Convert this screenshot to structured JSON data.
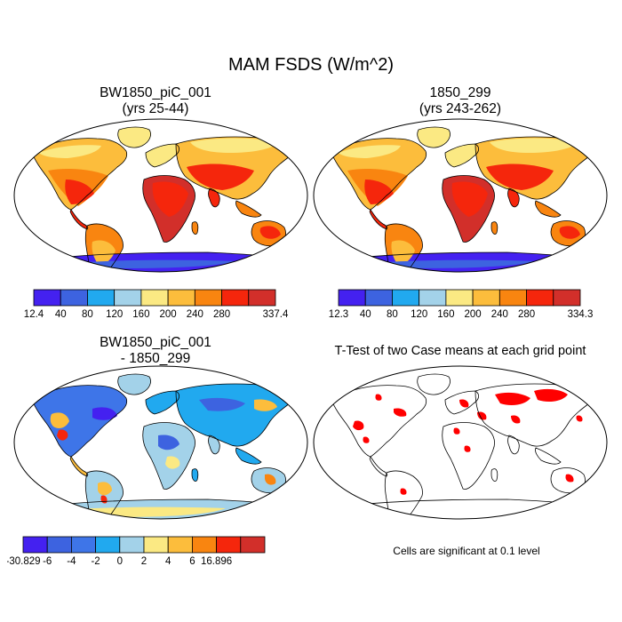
{
  "title": "MAM FSDS (W/m^2)",
  "panels": {
    "case1": {
      "title_line1": "BW1850_piC_001",
      "title_line2": "(yrs 25-44)"
    },
    "case2": {
      "title_line1": "1850_299",
      "title_line2": "(yrs 243-262)"
    },
    "diff": {
      "title_line1": "BW1850_piC_001",
      "title_line2": "- 1850_299"
    },
    "ttest": {
      "title": "T-Test of two Case means at each grid point",
      "note": "Cells are significant at 0.1 level"
    }
  },
  "colorbars": {
    "case1": {
      "colors": [
        "#4421f0",
        "#3d63e0",
        "#21a9ef",
        "#a3d2e9",
        "#fbe983",
        "#fcbd3c",
        "#f98510",
        "#f5260c",
        "#d22f2a"
      ],
      "labels": [
        "12.4",
        "40",
        "80",
        "120",
        "160",
        "200",
        "240",
        "280",
        "337.4"
      ]
    },
    "case2": {
      "colors": [
        "#4421f0",
        "#3d63e0",
        "#21a9ef",
        "#a3d2e9",
        "#fbe983",
        "#fcbd3c",
        "#f98510",
        "#f5260c",
        "#d22f2a"
      ],
      "labels": [
        "12.3",
        "40",
        "80",
        "120",
        "160",
        "200",
        "240",
        "280",
        "334.3"
      ]
    },
    "diff": {
      "colors": [
        "#4421f0",
        "#3d63e0",
        "#3e75e8",
        "#21a9ef",
        "#a3d2e9",
        "#fbe983",
        "#fcbd3c",
        "#f98510",
        "#f5260c",
        "#d22f2a"
      ],
      "labels": [
        "-30.829",
        "-6",
        "-4",
        "-2",
        "0",
        "2",
        "4",
        "6",
        "16.896"
      ]
    }
  },
  "significance_color": "#ff0000",
  "ocean_color": "#ffffff"
}
